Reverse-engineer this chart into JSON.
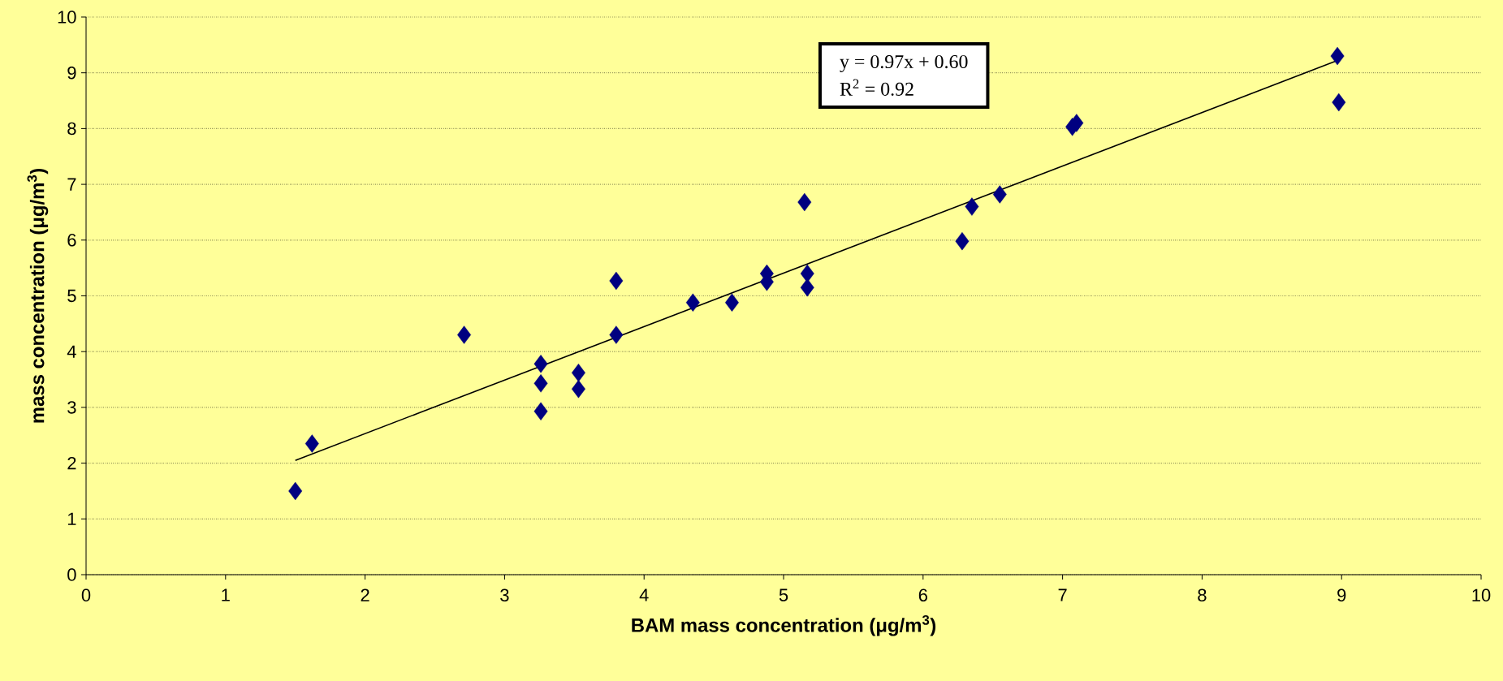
{
  "chart_data": {
    "type": "scatter",
    "xlabel": "BAM mass concentration (μg/m$^{3}$)",
    "ylabel": "mass concentration (μg/m$^{3}$)",
    "annotations": [
      "y = 0.97x + 0.60",
      "R$^{2}$ = 0.92"
    ],
    "xlim": [
      0,
      10
    ],
    "ylim": [
      0,
      10
    ],
    "xticks": [
      0,
      1,
      2,
      3,
      4,
      5,
      6,
      7,
      8,
      9,
      10
    ],
    "yticks": [
      0,
      1,
      2,
      3,
      4,
      5,
      6,
      7,
      8,
      9,
      10
    ],
    "grid": "y",
    "marker": "diamond",
    "series": [
      {
        "color": "#000080",
        "x": [
          1.5,
          1.62,
          2.71,
          3.26,
          3.26,
          3.26,
          3.53,
          3.53,
          3.8,
          3.8,
          4.35,
          4.63,
          4.88,
          4.88,
          5.15,
          5.17,
          5.17,
          6.28,
          6.35,
          6.55,
          7.07,
          7.1,
          8.97,
          8.98
        ],
        "values": [
          1.5,
          2.35,
          4.3,
          3.78,
          3.43,
          2.93,
          3.62,
          3.33,
          5.27,
          4.3,
          4.88,
          4.88,
          5.4,
          5.25,
          6.68,
          5.4,
          5.15,
          5.98,
          6.6,
          6.82,
          8.03,
          8.1,
          9.3,
          8.47
        ]
      },
      {
        "type": "line",
        "color": "#000000",
        "marker": "none",
        "line_style": "solid",
        "x": [
          1.5,
          8.97
        ],
        "values": [
          2.05,
          9.22
        ]
      }
    ]
  }
}
